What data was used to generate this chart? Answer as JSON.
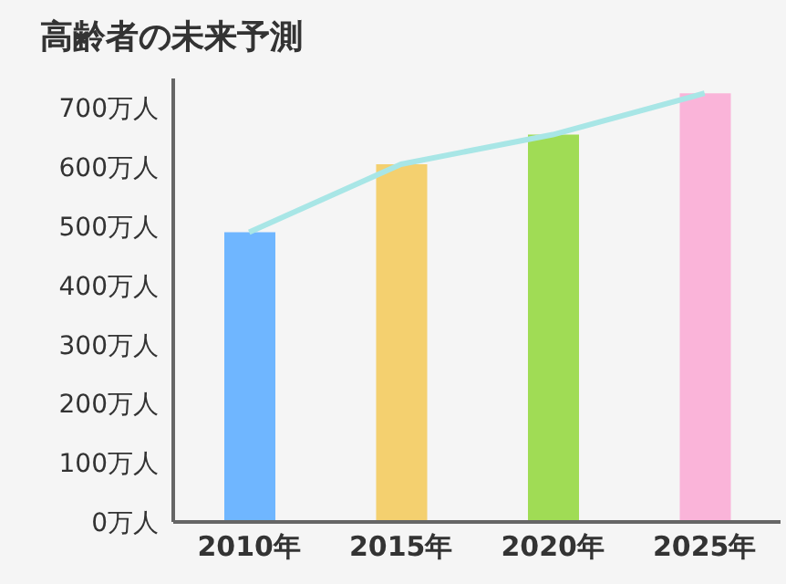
{
  "chart_data": {
    "type": "bar",
    "title": "高齢者の未来予測",
    "categories": [
      "2010年",
      "2015年",
      "2020年",
      "2025年"
    ],
    "series": [
      {
        "colors": [
          "#6fb6ff",
          "#f4d06f",
          "#a0dc55",
          "#fab4d9"
        ],
        "values": [
          490,
          605,
          655,
          725
        ]
      },
      {
        "type": "line",
        "color": "#a8e6e6",
        "values": [
          490,
          605,
          655,
          725
        ],
        "marker": "none"
      }
    ],
    "ylim": [
      0,
      750
    ],
    "yticks": [
      {
        "value": 0,
        "label": "0万人"
      },
      {
        "value": 100,
        "label": "100万人"
      },
      {
        "value": 200,
        "label": "200万人"
      },
      {
        "value": 300,
        "label": "300万人"
      },
      {
        "value": 400,
        "label": "400万人"
      },
      {
        "value": 500,
        "label": "500万人"
      },
      {
        "value": 600,
        "label": "600万人"
      },
      {
        "value": 700,
        "label": "700万人"
      }
    ],
    "grid": false,
    "legend": false
  }
}
